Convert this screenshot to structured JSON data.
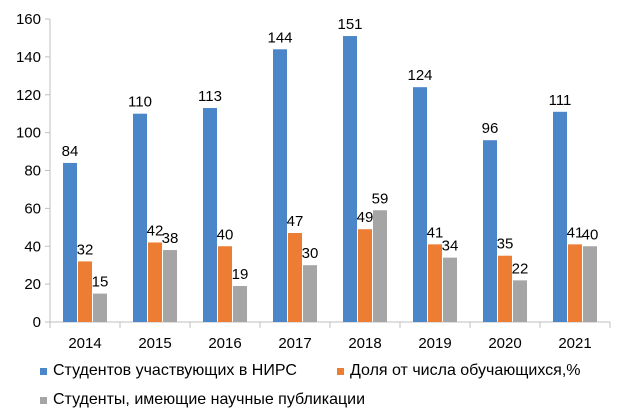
{
  "chart_data": {
    "type": "bar",
    "title": "",
    "xlabel": "",
    "ylabel": "",
    "ylim": [
      0,
      160
    ],
    "yticks": [
      0,
      20,
      40,
      60,
      80,
      100,
      120,
      140,
      160
    ],
    "categories": [
      "2014",
      "2015",
      "2016",
      "2017",
      "2018",
      "2019",
      "2020",
      "2021"
    ],
    "series": [
      {
        "name": "Студентов участвующих в НИРС",
        "color": "#4a86c8",
        "values": [
          84,
          110,
          113,
          144,
          151,
          124,
          96,
          111
        ]
      },
      {
        "name": "Доля от числа обучающихся,%",
        "color": "#ee7d34",
        "values": [
          32,
          42,
          40,
          47,
          49,
          41,
          35,
          41
        ]
      },
      {
        "name": "Студенты, имеющие научные публикации",
        "color": "#a5a5a5",
        "values": [
          15,
          38,
          19,
          30,
          59,
          34,
          22,
          40
        ]
      }
    ],
    "grid": false,
    "legend_position": "bottom"
  }
}
